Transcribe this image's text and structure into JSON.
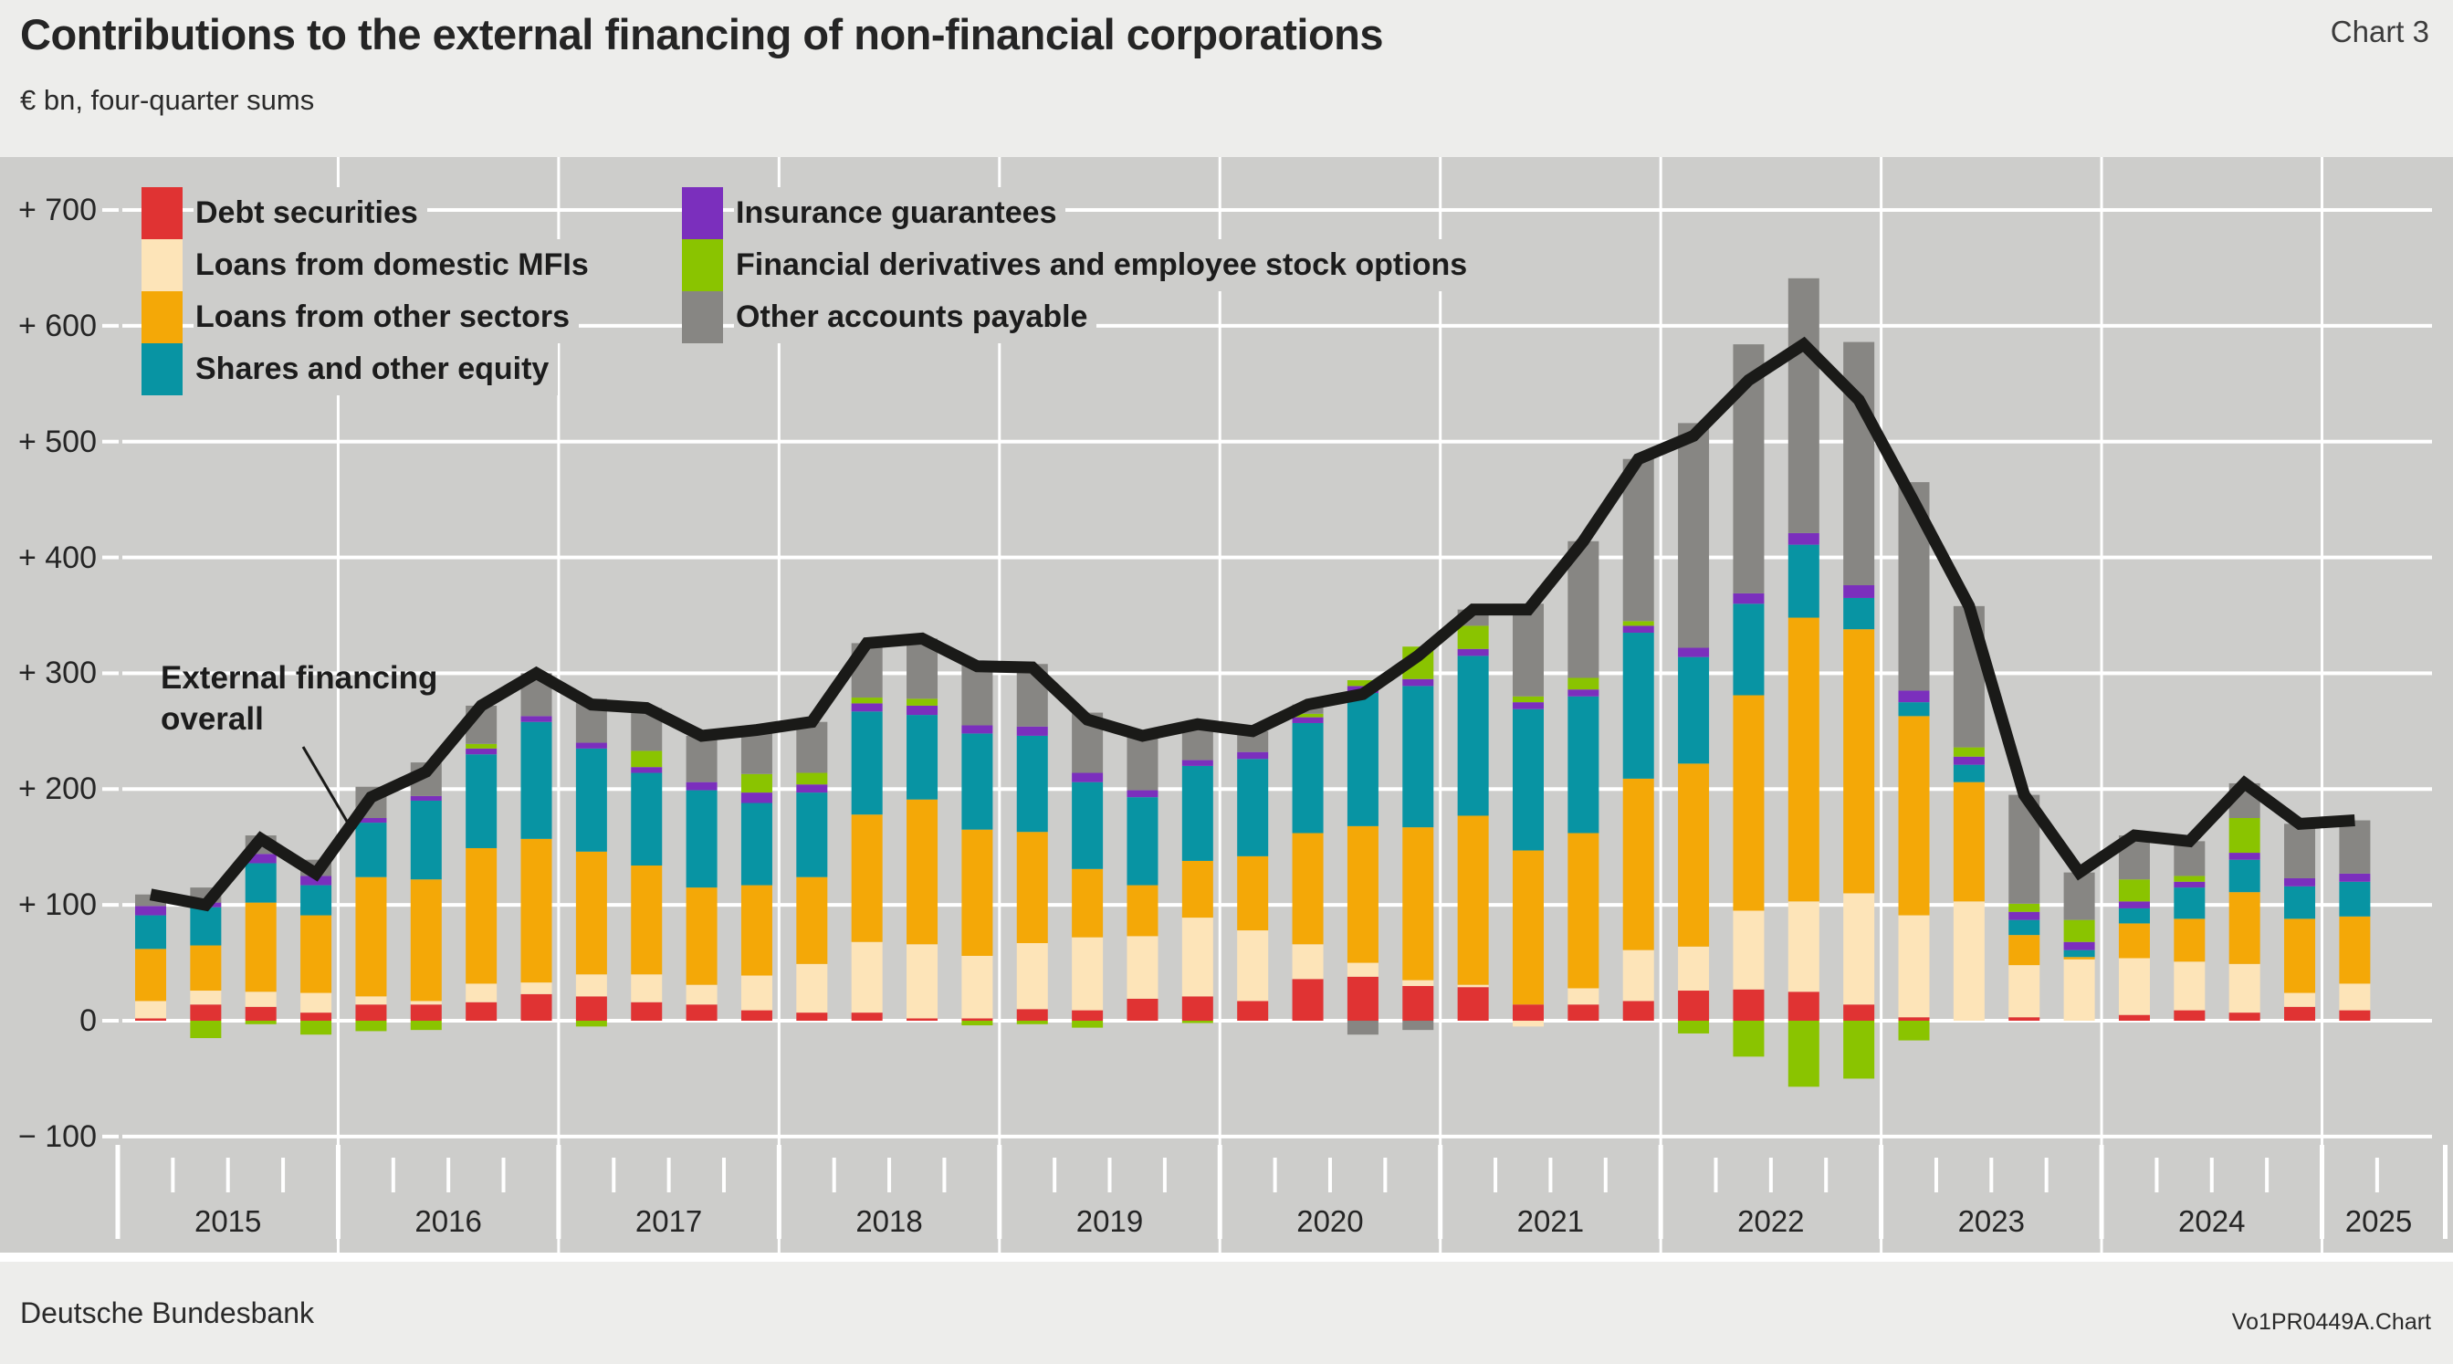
{
  "header": {
    "title": "Contributions to the external financing of non-financial corporations",
    "chart_label": "Chart 3",
    "unit_note": "€ bn, four-quarter sums"
  },
  "footer": {
    "left": "Deutsche Bundesbank",
    "right": "Vo1PR0449A.Chart"
  },
  "chart_data": {
    "type": "bar",
    "subtype": "stacked-bars-with-overall-line",
    "title": "Contributions to the external financing of non-financial corporations",
    "subtitle": "€ bn, four-quarter sums",
    "ylabel": "€ bn",
    "ylim": [
      -100,
      700
    ],
    "grid": true,
    "legend_position": "top-left",
    "plot_background": "#cdcdcb",
    "page_background": "#ededeb",
    "gridline_color": "#ffffff",
    "categories": [
      "2015 Q1",
      "2015 Q2",
      "2015 Q3",
      "2015 Q4",
      "2016 Q1",
      "2016 Q2",
      "2016 Q3",
      "2016 Q4",
      "2017 Q1",
      "2017 Q2",
      "2017 Q3",
      "2017 Q4",
      "2018 Q1",
      "2018 Q2",
      "2018 Q3",
      "2018 Q4",
      "2019 Q1",
      "2019 Q2",
      "2019 Q3",
      "2019 Q4",
      "2020 Q1",
      "2020 Q2",
      "2020 Q3",
      "2020 Q4",
      "2021 Q1",
      "2021 Q2",
      "2021 Q3",
      "2021 Q4",
      "2022 Q1",
      "2022 Q2",
      "2022 Q3",
      "2022 Q4",
      "2023 Q1",
      "2023 Q2",
      "2023 Q3",
      "2023 Q4",
      "2024 Q1",
      "2024 Q2",
      "2024 Q3",
      "2024 Q4",
      "2025 Q1"
    ],
    "x_year_labels": [
      "2015",
      "2016",
      "2017",
      "2018",
      "2019",
      "2020",
      "2021",
      "2022",
      "2023",
      "2024",
      "2025"
    ],
    "series": [
      {
        "name": "Debt securities",
        "color": "#e03333",
        "values": [
          2,
          14,
          12,
          7,
          14,
          14,
          16,
          23,
          21,
          16,
          14,
          9,
          7,
          7,
          2,
          2,
          10,
          9,
          19,
          21,
          17,
          36,
          38,
          30,
          29,
          14,
          14,
          17,
          26,
          27,
          25,
          14,
          3,
          0,
          3,
          0,
          5,
          9,
          7,
          12,
          9
        ]
      },
      {
        "name": "Loans from domestic MFIs",
        "color": "#fde4b8",
        "values": [
          15,
          12,
          13,
          17,
          7,
          3,
          16,
          10,
          19,
          24,
          17,
          30,
          42,
          61,
          64,
          54,
          57,
          63,
          54,
          68,
          61,
          30,
          12,
          5,
          2,
          -5,
          14,
          44,
          38,
          68,
          78,
          96,
          88,
          103,
          45,
          53,
          49,
          42,
          42,
          12,
          23
        ]
      },
      {
        "name": "Loans from other sectors",
        "color": "#f4a807",
        "values": [
          45,
          39,
          77,
          67,
          103,
          105,
          117,
          124,
          106,
          94,
          84,
          78,
          75,
          110,
          125,
          109,
          96,
          59,
          44,
          49,
          64,
          96,
          118,
          132,
          146,
          133,
          134,
          148,
          158,
          186,
          245,
          228,
          172,
          103,
          26,
          2,
          30,
          37,
          62,
          64,
          58
        ]
      },
      {
        "name": "Shares and other equity",
        "color": "#0894a3",
        "values": [
          29,
          33,
          34,
          26,
          47,
          68,
          81,
          101,
          89,
          80,
          84,
          71,
          73,
          89,
          73,
          83,
          83,
          75,
          76,
          82,
          84,
          95,
          115,
          122,
          138,
          122,
          118,
          126,
          92,
          79,
          63,
          27,
          12,
          15,
          13,
          6,
          13,
          27,
          28,
          28,
          30
        ]
      },
      {
        "name": "Insurance guarantees",
        "color": "#7b2fbd",
        "values": [
          8,
          4,
          8,
          8,
          4,
          4,
          5,
          5,
          5,
          5,
          7,
          9,
          7,
          7,
          8,
          7,
          8,
          8,
          6,
          5,
          6,
          5,
          6,
          6,
          6,
          6,
          6,
          6,
          8,
          9,
          10,
          11,
          10,
          7,
          7,
          7,
          6,
          5,
          6,
          7,
          7
        ]
      },
      {
        "name": "Financial derivatives and employee stock options",
        "color": "#8ac400",
        "values": [
          0,
          -15,
          -3,
          -12,
          -9,
          -8,
          4,
          0,
          -5,
          14,
          0,
          16,
          10,
          5,
          6,
          -4,
          -3,
          -6,
          0,
          -2,
          0,
          3,
          5,
          28,
          20,
          5,
          10,
          4,
          -11,
          -31,
          -57,
          -50,
          -17,
          8,
          7,
          19,
          19,
          5,
          30,
          0,
          0
        ]
      },
      {
        "name": "Other accounts payable",
        "color": "#878683",
        "values": [
          10,
          13,
          16,
          14,
          27,
          29,
          33,
          37,
          38,
          37,
          40,
          38,
          44,
          47,
          52,
          55,
          54,
          52,
          47,
          33,
          18,
          8,
          -12,
          -8,
          14,
          80,
          118,
          140,
          194,
          215,
          220,
          210,
          180,
          122,
          94,
          41,
          38,
          30,
          30,
          47,
          46
        ]
      }
    ],
    "line_series": {
      "name": "External financing overall",
      "color": "#1a1a18",
      "values": [
        109,
        100,
        157,
        127,
        193,
        215,
        272,
        300,
        273,
        270,
        246,
        251,
        258,
        326,
        330,
        306,
        305,
        260,
        246,
        256,
        250,
        273,
        282,
        315,
        355,
        355,
        414,
        485,
        505,
        553,
        584,
        536,
        448,
        358,
        195,
        128,
        160,
        155,
        205,
        170,
        173
      ]
    },
    "y_axis": {
      "ticks": [
        {
          "value": 700,
          "label": "+ 700"
        },
        {
          "value": 600,
          "label": "+ 600"
        },
        {
          "value": 500,
          "label": "+ 500"
        },
        {
          "value": 400,
          "label": "+ 400"
        },
        {
          "value": 300,
          "label": "+ 300"
        },
        {
          "value": 200,
          "label": "+ 200"
        },
        {
          "value": 100,
          "label": "+ 100"
        },
        {
          "value": 0,
          "label": "0"
        },
        {
          "value": -100,
          "label": "− 100"
        }
      ]
    },
    "legend": {
      "columns": [
        [
          0,
          1,
          2,
          3
        ],
        [
          4,
          5,
          6
        ]
      ]
    },
    "annotation": {
      "line1": "External financing",
      "line2": "overall"
    }
  }
}
